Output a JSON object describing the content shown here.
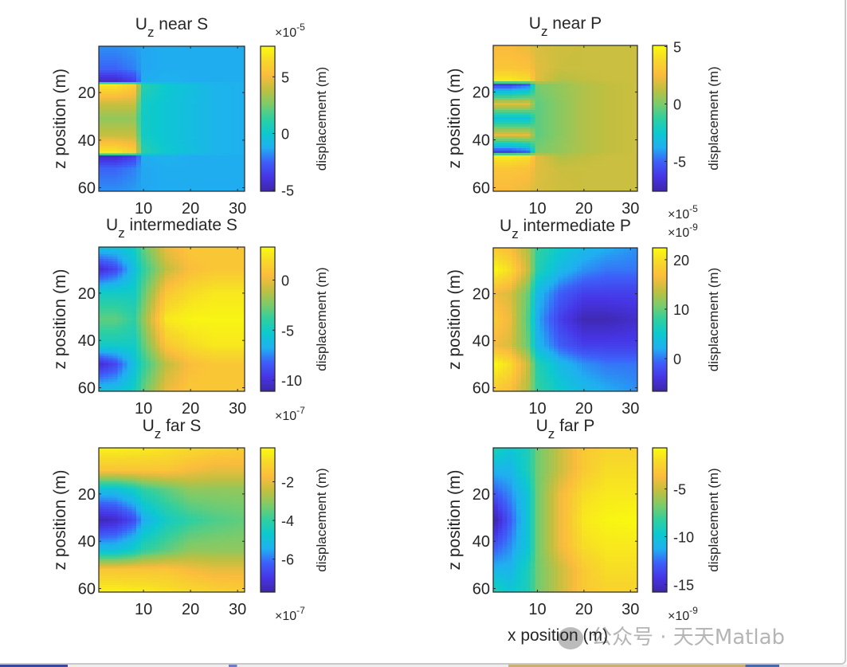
{
  "figure": {
    "xlabel": "x position (m)",
    "watermark": "公众号 · 天天Matlab"
  },
  "colors": {
    "colormap": "parula",
    "stops": [
      "#3e26a8",
      "#4635e5",
      "#3d5ff9",
      "#1fb0f0",
      "#0cc9cf",
      "#2fcfa0",
      "#7ccb6a",
      "#c0bf40",
      "#fbbc3d",
      "#f7d82a",
      "#f9fb0e"
    ],
    "axes": "#262626"
  },
  "chart_data": [
    {
      "type": "heatmap",
      "title_main": "U",
      "title_sub": "z",
      "title_text": " near S",
      "ylabel": "z position (m)",
      "xlabel": "",
      "colorbar_label": "displacement (m)",
      "colorbar_exponent_base": "×10",
      "colorbar_exponent": "-5",
      "xlim": [
        0.5,
        31.5
      ],
      "ylim": [
        0.5,
        61.5
      ],
      "y_reversed": true,
      "xticks": [
        "10",
        "20",
        "30"
      ],
      "yticks": [
        "20",
        "40",
        "60"
      ],
      "clim": [
        -5.1,
        7.7
      ],
      "cticks": [
        "-5",
        "0",
        "5"
      ],
      "x": [
        1,
        4,
        8,
        10,
        15,
        20,
        25,
        31
      ],
      "z": [
        1,
        10,
        15,
        17,
        25,
        31,
        38,
        45,
        47,
        52,
        61
      ],
      "values": [
        [
          -1.8,
          -1.8,
          -1.6,
          -1.4,
          -1.3,
          -1.3,
          -1.3,
          -1.3
        ],
        [
          -2.5,
          -2.5,
          -2,
          -1.4,
          -1.3,
          -1.3,
          -1.3,
          -1.3
        ],
        [
          -4.5,
          -4.5,
          -3.5,
          -1.3,
          -1.2,
          -1.3,
          -1.3,
          -1.3
        ],
        [
          7,
          7,
          6,
          1,
          0,
          -0.5,
          -1,
          -1.2
        ],
        [
          4,
          4,
          4,
          0.3,
          -0.2,
          -0.6,
          -1,
          -1.2
        ],
        [
          3,
          3,
          3,
          0.3,
          -0.2,
          -0.6,
          -1,
          -1.2
        ],
        [
          4,
          4,
          4,
          0.3,
          -0.2,
          -0.6,
          -1,
          -1.2
        ],
        [
          7,
          7,
          6,
          1,
          0,
          -0.5,
          -1,
          -1.2
        ],
        [
          -4.5,
          -4.5,
          -3.5,
          -1.3,
          -1.2,
          -1.3,
          -1.3,
          -1.3
        ],
        [
          -2.5,
          -2.5,
          -2,
          -1.4,
          -1.3,
          -1.3,
          -1.3,
          -1.3
        ],
        [
          -1.8,
          -1.8,
          -1.6,
          -1.4,
          -1.3,
          -1.3,
          -1.3,
          -1.3
        ]
      ]
    },
    {
      "type": "heatmap",
      "title_main": "U",
      "title_sub": "z",
      "title_text": " near P",
      "ylabel": "z position (m)",
      "xlabel": "",
      "colorbar_label": "displacement (m)",
      "colorbar_exponent_base": "×10",
      "colorbar_exponent": "-5",
      "xlim": [
        0.5,
        31.5
      ],
      "ylim": [
        0.5,
        61.5
      ],
      "y_reversed": true,
      "xticks": [
        "10",
        "20",
        "30"
      ],
      "yticks": [
        "20",
        "40",
        "60"
      ],
      "clim": [
        -7.6,
        5.1
      ],
      "cticks": [
        "-5",
        "0",
        "5"
      ],
      "x": [
        1,
        4,
        8,
        10,
        15,
        20,
        25,
        31
      ],
      "z": [
        1,
        10,
        15,
        17,
        25,
        31,
        38,
        45,
        47,
        52,
        61
      ],
      "values": [
        [
          2.5,
          2.5,
          2.2,
          1.8,
          1.6,
          1.5,
          1.5,
          1.5
        ],
        [
          3,
          3,
          2.8,
          2,
          1.5,
          1.5,
          1.5,
          1.5
        ],
        [
          4.5,
          4.5,
          4,
          2,
          1,
          1.3,
          1.5,
          1.5
        ],
        [
          -6,
          -6,
          -5,
          0,
          0.5,
          1,
          1.3,
          1.5
        ],
        [
          2,
          2,
          2,
          -0.5,
          0.3,
          1,
          1.3,
          1.5
        ],
        [
          -3,
          -3,
          -3,
          -0.5,
          0.3,
          1,
          1.3,
          1.5
        ],
        [
          2,
          2,
          2,
          -0.5,
          0.3,
          1,
          1.3,
          1.5
        ],
        [
          -6,
          -6,
          -5,
          0,
          0.5,
          1,
          1.3,
          1.5
        ],
        [
          4.5,
          4.5,
          4,
          2,
          1,
          1.3,
          1.5,
          1.5
        ],
        [
          3,
          3,
          2.8,
          2,
          1.5,
          1.5,
          1.5,
          1.5
        ],
        [
          2.5,
          2.5,
          2.2,
          1.8,
          1.6,
          1.5,
          1.5,
          1.5
        ]
      ]
    },
    {
      "type": "heatmap",
      "title_main": "U",
      "title_sub": "z",
      "title_text": " intermediate S",
      "ylabel": "z position (m)",
      "xlabel": "",
      "colorbar_label": "displacement (m)",
      "colorbar_exponent_base": "×10",
      "colorbar_exponent": "-7",
      "xlim": [
        0.5,
        31.5
      ],
      "ylim": [
        0.5,
        61.5
      ],
      "y_reversed": true,
      "xticks": [
        "10",
        "20",
        "30"
      ],
      "yticks": [
        "20",
        "40",
        "60"
      ],
      "clim": [
        -11.1,
        3.3
      ],
      "cticks": [
        "-10",
        "-5",
        "0"
      ],
      "x": [
        1,
        4,
        8,
        10,
        15,
        20,
        25,
        31
      ],
      "z": [
        1,
        10,
        20,
        31,
        42,
        50,
        61
      ],
      "values": [
        [
          -6,
          -6,
          -5,
          -3,
          0,
          1,
          1,
          1
        ],
        [
          -10,
          -9,
          -6,
          -4,
          -1,
          0.5,
          1,
          1
        ],
        [
          -5,
          -5,
          -5,
          -3,
          1,
          2,
          2.5,
          2.5
        ],
        [
          -3,
          -3,
          -4,
          -2,
          2.5,
          3,
          3,
          3
        ],
        [
          -5,
          -5,
          -5,
          -3,
          1,
          2,
          2.5,
          2.5
        ],
        [
          -10,
          -9,
          -6,
          -4,
          -1,
          0.5,
          1,
          1
        ],
        [
          -6,
          -6,
          -5,
          -3,
          0,
          1,
          1,
          1
        ]
      ]
    },
    {
      "type": "heatmap",
      "title_main": "U",
      "title_sub": "z",
      "title_text": " intermediate P",
      "ylabel": "z position (m)",
      "xlabel": "",
      "colorbar_label": "displacement (m)",
      "colorbar_exponent_base": "×10",
      "colorbar_exponent": "-9",
      "xlim": [
        0.5,
        31.5
      ],
      "ylim": [
        0.5,
        61.5
      ],
      "y_reversed": true,
      "xticks": [
        "10",
        "20",
        "30"
      ],
      "yticks": [
        "20",
        "40",
        "60"
      ],
      "clim": [
        -6.6,
        22.4
      ],
      "cticks": [
        "0",
        "10",
        "20"
      ],
      "x": [
        1,
        4,
        8,
        10,
        15,
        20,
        25,
        31
      ],
      "z": [
        1,
        10,
        20,
        31,
        42,
        50,
        61
      ],
      "values": [
        [
          18,
          17,
          13,
          8,
          5,
          3,
          2,
          1
        ],
        [
          22,
          20,
          14,
          7,
          3,
          1,
          0,
          0
        ],
        [
          16,
          15,
          10,
          3,
          -1,
          -3,
          -3,
          -3
        ],
        [
          18,
          16,
          9,
          2,
          -3,
          -6,
          -6,
          -5
        ],
        [
          16,
          15,
          10,
          3,
          -1,
          -3,
          -3,
          -3
        ],
        [
          22,
          20,
          14,
          7,
          3,
          1,
          0,
          0
        ],
        [
          18,
          17,
          13,
          8,
          5,
          3,
          2,
          1
        ]
      ]
    },
    {
      "type": "heatmap",
      "title_main": "U",
      "title_sub": "z",
      "title_text": " far S",
      "ylabel": "z position (m)",
      "xlabel": "",
      "colorbar_label": "displacement (m)",
      "colorbar_exponent_base": "×10",
      "colorbar_exponent": "-7",
      "xlim": [
        0.5,
        31.5
      ],
      "ylim": [
        0.5,
        61.5
      ],
      "y_reversed": true,
      "xticks": [
        "10",
        "20",
        "30"
      ],
      "yticks": [
        "20",
        "40",
        "60"
      ],
      "clim": [
        -7.7,
        -0.25
      ],
      "cticks": [
        "-6",
        "-4",
        "-2"
      ],
      "x": [
        1,
        4,
        8,
        10,
        15,
        20,
        25,
        31
      ],
      "z": [
        1,
        10,
        18,
        31,
        44,
        52,
        61
      ],
      "values": [
        [
          -0.5,
          -0.5,
          -0.6,
          -0.6,
          -0.8,
          -1,
          -1.2,
          -1.3
        ],
        [
          -1.5,
          -1.5,
          -1.5,
          -1.5,
          -1.5,
          -1.8,
          -2,
          -2
        ],
        [
          -5,
          -5,
          -4.5,
          -4,
          -3.5,
          -3,
          -3,
          -3
        ],
        [
          -7.5,
          -7.3,
          -6.5,
          -5.5,
          -4.5,
          -4,
          -3.7,
          -3.5
        ],
        [
          -5,
          -5,
          -4.5,
          -4,
          -3.5,
          -3,
          -3,
          -3
        ],
        [
          -1.5,
          -1.5,
          -1.5,
          -1.5,
          -1.5,
          -1.8,
          -2,
          -2
        ],
        [
          -0.5,
          -0.5,
          -0.6,
          -0.6,
          -0.8,
          -1,
          -1.2,
          -1.3
        ]
      ]
    },
    {
      "type": "heatmap",
      "title_main": "U",
      "title_sub": "z",
      "title_text": " far P",
      "ylabel": "z position (m)",
      "xlabel": "x position (m)",
      "colorbar_label": "displacement (m)",
      "colorbar_exponent_base": "×10",
      "colorbar_exponent": "-9",
      "xlim": [
        0.5,
        31.5
      ],
      "ylim": [
        0.5,
        61.5
      ],
      "y_reversed": true,
      "xticks": [
        "10",
        "20",
        "30"
      ],
      "yticks": [
        "20",
        "40",
        "60"
      ],
      "clim": [
        -15.8,
        -0.7
      ],
      "cticks": [
        "-15",
        "-10",
        "-5"
      ],
      "x": [
        1,
        4,
        8,
        10,
        15,
        20,
        25,
        31
      ],
      "z": [
        1,
        10,
        20,
        31,
        42,
        52,
        61
      ],
      "values": [
        [
          -9,
          -10,
          -9,
          -7,
          -5,
          -3,
          -2.5,
          -2.5
        ],
        [
          -11,
          -11,
          -9,
          -7,
          -5,
          -3,
          -2,
          -2
        ],
        [
          -13,
          -12,
          -10,
          -7,
          -4,
          -2,
          -1.5,
          -1.5
        ],
        [
          -15.5,
          -13,
          -10,
          -7,
          -4,
          -1.5,
          -1,
          -0.8
        ],
        [
          -13,
          -12,
          -10,
          -7,
          -4,
          -2,
          -1.5,
          -1.5
        ],
        [
          -11,
          -11,
          -9,
          -7,
          -5,
          -3,
          -2,
          -2
        ],
        [
          -9,
          -10,
          -9,
          -7,
          -5,
          -3,
          -2.5,
          -2.5
        ]
      ]
    }
  ]
}
